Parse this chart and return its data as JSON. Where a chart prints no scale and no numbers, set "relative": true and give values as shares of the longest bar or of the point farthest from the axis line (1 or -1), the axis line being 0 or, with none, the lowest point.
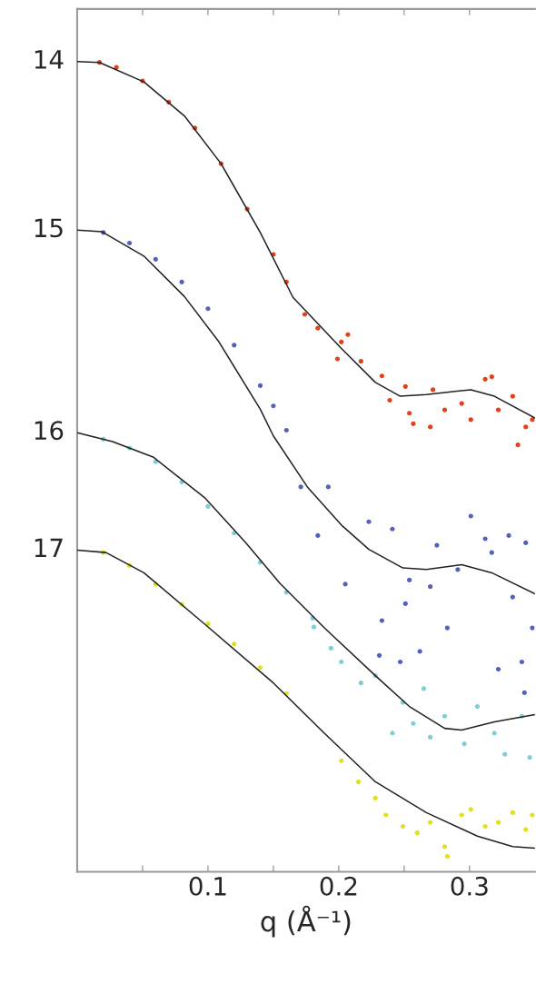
{
  "chart_data": {
    "type": "scatter",
    "relative": true,
    "xlabel": "q (Å⁻¹)",
    "xlim": [
      0,
      0.35
    ],
    "xticks": [
      {
        "value": 0.05,
        "label": null
      },
      0.1,
      {
        "value": 0.15,
        "label": null
      },
      0.2,
      {
        "value": 0.25,
        "label": null
      },
      0.3
    ],
    "tick_labels": "x",
    "series": [
      {
        "color": "#e0401a",
        "marker": "circle",
        "x": [
          0.017,
          0.03,
          0.05,
          0.07,
          0.09,
          0.11,
          0.13,
          0.15,
          0.16,
          0.174,
          0.184,
          0.199,
          0.202,
          0.207,
          0.217,
          0.233,
          0.239,
          0.251,
          0.254,
          0.257,
          0.27,
          0.272,
          0.281,
          0.294,
          0.301,
          0.312,
          0.317,
          0.322,
          0.333,
          0.337,
          0.343,
          0.348
        ],
        "values": [
          0.999,
          0.993,
          0.976,
          0.95,
          0.918,
          0.874,
          0.818,
          0.762,
          0.728,
          0.688,
          0.671,
          0.633,
          0.654,
          0.663,
          0.63,
          0.612,
          0.582,
          0.599,
          0.566,
          0.553,
          0.549,
          0.595,
          0.57,
          0.578,
          0.558,
          0.608,
          0.611,
          0.57,
          0.587,
          0.527,
          0.549,
          0.558
        ]
      },
      {
        "color": "#5560b8",
        "marker": "circle",
        "x": [
          0.02,
          0.04,
          0.06,
          0.08,
          0.1,
          0.12,
          0.14,
          0.15,
          0.16,
          0.171,
          0.184,
          0.192,
          0.205,
          0.223,
          0.231,
          0.233,
          0.241,
          0.247,
          0.251,
          0.254,
          0.262,
          0.27,
          0.275,
          0.283,
          0.291,
          0.301,
          0.312,
          0.317,
          0.322,
          0.33,
          0.333,
          0.34,
          0.342,
          0.343,
          0.348
        ],
        "values": [
          0.789,
          0.776,
          0.756,
          0.728,
          0.695,
          0.65,
          0.6,
          0.575,
          0.545,
          0.475,
          0.415,
          0.475,
          0.355,
          0.432,
          0.267,
          0.31,
          0.423,
          0.259,
          0.331,
          0.36,
          0.272,
          0.352,
          0.403,
          0.301,
          0.373,
          0.439,
          0.411,
          0.394,
          0.25,
          0.415,
          0.339,
          0.259,
          0.221,
          0.406,
          0.301
        ]
      },
      {
        "color": "#7fcfd0",
        "marker": "circle",
        "x": [
          0.02,
          0.04,
          0.06,
          0.08,
          0.1,
          0.12,
          0.14,
          0.16,
          0.18,
          0.181,
          0.194,
          0.202,
          0.217,
          0.228,
          0.241,
          0.249,
          0.257,
          0.265,
          0.27,
          0.281,
          0.296,
          0.306,
          0.319,
          0.327,
          0.34,
          0.346
        ],
        "values": [
          0.534,
          0.523,
          0.506,
          0.481,
          0.451,
          0.418,
          0.382,
          0.345,
          0.313,
          0.302,
          0.276,
          0.259,
          0.233,
          0.242,
          0.171,
          0.209,
          0.183,
          0.226,
          0.166,
          0.192,
          0.158,
          0.204,
          0.171,
          0.145,
          0.192,
          0.141
        ]
      },
      {
        "color": "#e0e020",
        "marker": "circle",
        "x": [
          0.02,
          0.04,
          0.06,
          0.08,
          0.1,
          0.12,
          0.14,
          0.16,
          0.202,
          0.215,
          0.228,
          0.236,
          0.249,
          0.26,
          0.27,
          0.281,
          0.283,
          0.294,
          0.301,
          0.312,
          0.322,
          0.333,
          0.343,
          0.348
        ],
        "values": [
          0.394,
          0.378,
          0.355,
          0.33,
          0.306,
          0.281,
          0.252,
          0.22,
          0.137,
          0.111,
          0.091,
          0.07,
          0.056,
          0.048,
          0.061,
          0.031,
          0.019,
          0.07,
          0.077,
          0.056,
          0.061,
          0.073,
          0.052,
          0.07
        ]
      },
      {
        "type": "line",
        "name": "14",
        "color": "#222222",
        "marker": "none",
        "line_style": "solid",
        "x": [
          0,
          0.017,
          0.051,
          0.082,
          0.11,
          0.14,
          0.165,
          0.202,
          0.228,
          0.247,
          0.267,
          0.301,
          0.319,
          0.35
        ],
        "values": [
          1.0,
          0.999,
          0.975,
          0.933,
          0.874,
          0.789,
          0.709,
          0.646,
          0.604,
          0.587,
          0.589,
          0.595,
          0.587,
          0.56
        ]
      },
      {
        "type": "line",
        "name": "15",
        "color": "#222222",
        "marker": "none",
        "line_style": "solid",
        "x": [
          0,
          0.019,
          0.051,
          0.082,
          0.108,
          0.14,
          0.15,
          0.176,
          0.202,
          0.223,
          0.249,
          0.267,
          0.294,
          0.317,
          0.35
        ],
        "values": [
          0.792,
          0.79,
          0.76,
          0.71,
          0.655,
          0.571,
          0.538,
          0.475,
          0.428,
          0.398,
          0.375,
          0.373,
          0.379,
          0.369,
          0.343
        ]
      },
      {
        "type": "line",
        "name": "16",
        "color": "#222222",
        "marker": "none",
        "line_style": "solid",
        "x": [
          0,
          0.027,
          0.058,
          0.098,
          0.129,
          0.155,
          0.189,
          0.228,
          0.254,
          0.281,
          0.294,
          0.319,
          0.35
        ],
        "values": [
          0.542,
          0.531,
          0.512,
          0.461,
          0.406,
          0.356,
          0.301,
          0.242,
          0.204,
          0.177,
          0.175,
          0.185,
          0.194
        ]
      },
      {
        "type": "line",
        "name": "17",
        "color": "#222222",
        "marker": "none",
        "line_style": "solid",
        "x": [
          0,
          0.022,
          0.051,
          0.098,
          0.15,
          0.189,
          0.228,
          0.267,
          0.306,
          0.333,
          0.35
        ],
        "values": [
          0.397,
          0.394,
          0.369,
          0.305,
          0.233,
          0.171,
          0.111,
          0.073,
          0.044,
          0.031,
          0.029
        ]
      }
    ]
  }
}
